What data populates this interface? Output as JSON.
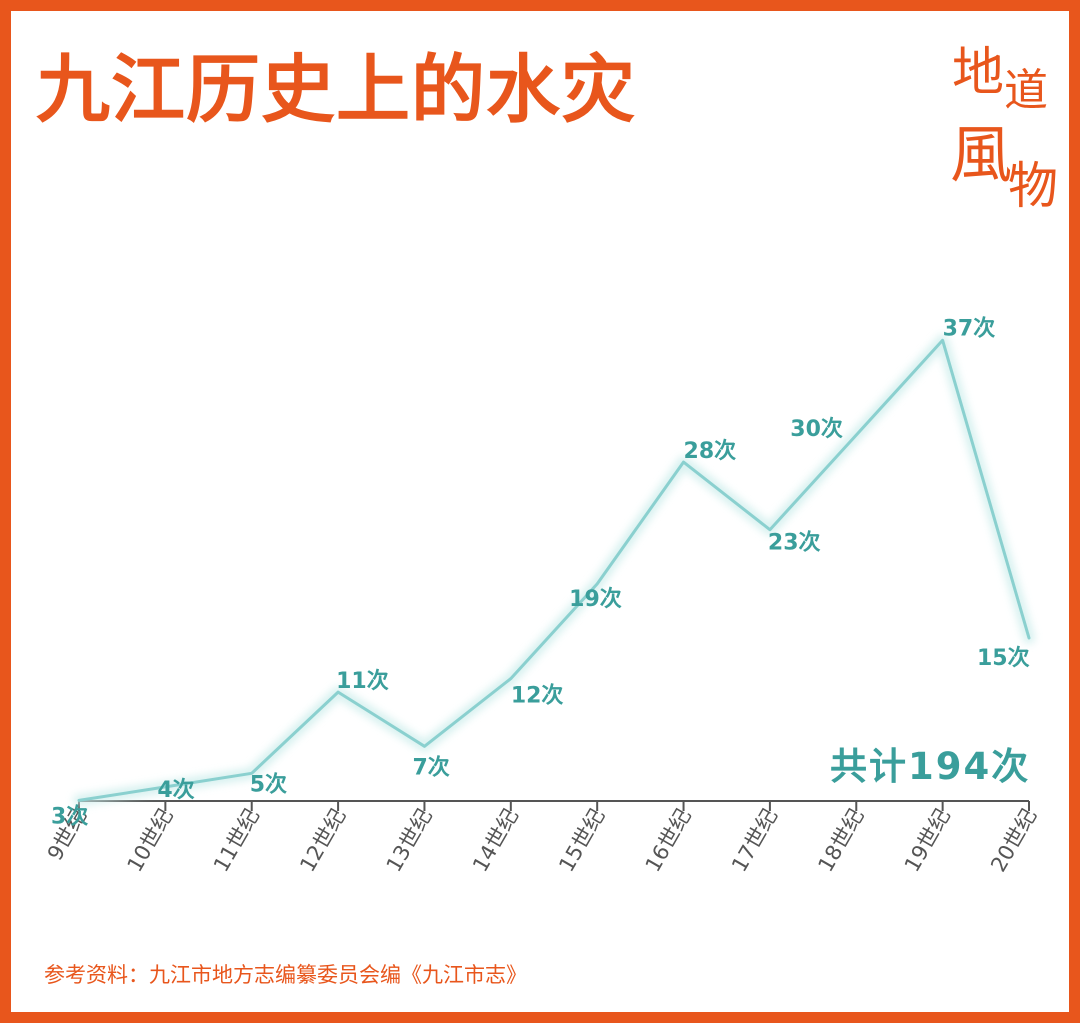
{
  "title": "九江历史上的水灾",
  "logo_chars": [
    "地",
    "道",
    "風",
    "物"
  ],
  "total_label": "共计194次",
  "source": "参考资料：九江市地方志编纂委员会编《九江市志》",
  "colors": {
    "accent": "#e8561c",
    "line": "#8ad0cf",
    "label": "#3a9e9b",
    "axis": "#555555"
  },
  "chart_data": {
    "type": "line",
    "categories": [
      "9世纪",
      "10世纪",
      "11世纪",
      "12世纪",
      "13世纪",
      "14世纪",
      "15世纪",
      "16世纪",
      "17世纪",
      "18世纪",
      "19世纪",
      "20世纪"
    ],
    "values": [
      3,
      4,
      5,
      11,
      7,
      12,
      19,
      28,
      23,
      30,
      37,
      15
    ],
    "data_labels": [
      "3次",
      "4次",
      "5次",
      "11次",
      "7次",
      "12次",
      "19次",
      "28次",
      "23次",
      "30次",
      "37次",
      "15次"
    ],
    "title": "九江历史上的水灾",
    "ylim": [
      0,
      45
    ],
    "grid": false,
    "legend": "none"
  }
}
